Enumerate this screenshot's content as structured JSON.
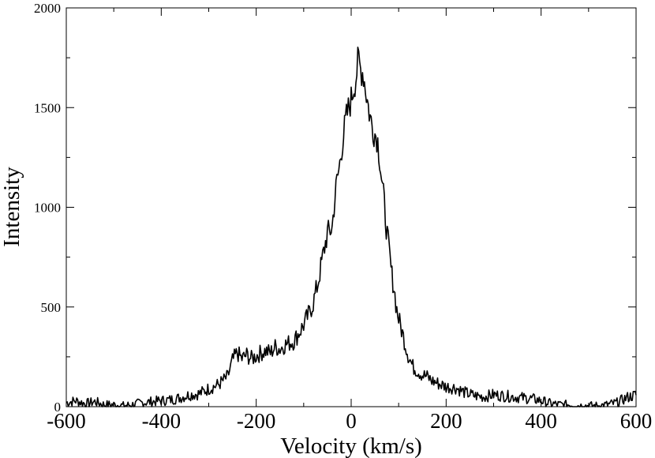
{
  "chart_data": {
    "type": "line",
    "title": "",
    "xlabel": "Velocity (km/s)",
    "ylabel": "Intensity",
    "xlim": [
      -600,
      600
    ],
    "ylim": [
      0,
      2000
    ],
    "x_ticks": [
      -600,
      -400,
      -200,
      0,
      200,
      400,
      600
    ],
    "x_tick_labels": [
      "-600",
      "-400",
      "-200",
      "0",
      "200",
      "400",
      "600"
    ],
    "y_ticks": [
      0,
      500,
      1000,
      1500,
      2000
    ],
    "y_tick_labels": [
      "0",
      "500",
      "1000",
      "1500",
      "2000"
    ],
    "grid": false,
    "legend": "none",
    "line_color": "#000000",
    "series": [
      {
        "x": [
          -600,
          -580,
          -560,
          -540,
          -520,
          -500,
          -480,
          -460,
          -440,
          -420,
          -400,
          -380,
          -360,
          -340,
          -320,
          -300,
          -280,
          -260,
          -250,
          -240,
          -230,
          -220,
          -210,
          -200,
          -190,
          -180,
          -170,
          -160,
          -150,
          -140,
          -130,
          -120,
          -110,
          -100,
          -90,
          -80,
          -70,
          -60,
          -50,
          -45,
          -40,
          -35,
          -30,
          -25,
          -20,
          -15,
          -10,
          -5,
          0,
          5,
          10,
          15,
          20,
          25,
          30,
          35,
          40,
          45,
          50,
          55,
          60,
          65,
          70,
          75,
          80,
          85,
          90,
          95,
          100,
          110,
          120,
          130,
          140,
          150,
          160,
          170,
          180,
          200,
          220,
          240,
          260,
          280,
          300,
          320,
          340,
          360,
          380,
          400,
          420,
          440,
          460,
          480,
          500,
          520,
          540,
          560,
          580,
          600
        ],
        "values": [
          20,
          30,
          15,
          25,
          10,
          10,
          5,
          10,
          20,
          25,
          30,
          35,
          45,
          60,
          65,
          90,
          110,
          150,
          230,
          270,
          240,
          260,
          240,
          255,
          270,
          280,
          270,
          300,
          290,
          310,
          320,
          330,
          370,
          410,
          460,
          520,
          620,
          750,
          870,
          880,
          900,
          1030,
          1130,
          1200,
          1300,
          1380,
          1450,
          1500,
          1540,
          1600,
          1650,
          1740,
          1690,
          1680,
          1600,
          1520,
          1450,
          1400,
          1370,
          1350,
          1250,
          1120,
          1010,
          880,
          780,
          670,
          600,
          500,
          440,
          350,
          260,
          200,
          180,
          160,
          150,
          130,
          120,
          100,
          95,
          70,
          55,
          50,
          60,
          55,
          50,
          45,
          40,
          30,
          15,
          10,
          10,
          5,
          5,
          5,
          10,
          20,
          45,
          60
        ]
      }
    ]
  }
}
